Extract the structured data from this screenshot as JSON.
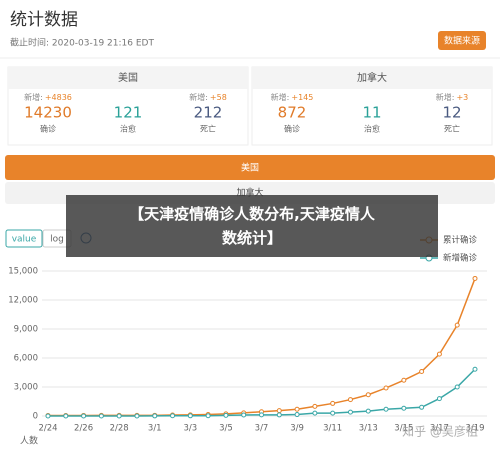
{
  "header": {
    "title": "统计数据",
    "updated": "截止时间: 2020-03-19 21:16 EDT",
    "source_button": "数据来源"
  },
  "regions": [
    {
      "name": "美国",
      "confirmed": {
        "delta_label": "新增:",
        "delta": "+4836",
        "value": 14230,
        "label": "确诊"
      },
      "recovered": {
        "value": 121,
        "label": "治愈"
      },
      "deaths": {
        "delta_label": "新增:",
        "delta": "+58",
        "value": 212,
        "label": "死亡"
      }
    },
    {
      "name": "加拿大",
      "confirmed": {
        "delta_label": "新增:",
        "delta": "+145",
        "value": 872,
        "label": "确诊"
      },
      "recovered": {
        "value": 11,
        "label": "治愈"
      },
      "deaths": {
        "delta_label": "新增:",
        "delta": "+3",
        "value": 12,
        "label": "死亡"
      }
    }
  ],
  "tabs": [
    "美国",
    "加拿大"
  ],
  "scale_toggle": [
    "value",
    "log"
  ],
  "caption": "【天津疫情确诊人数分布,天津疫情人数统计】",
  "watermark": "知乎 @吴彦祖",
  "chart_data": {
    "type": "line",
    "y_label": "人数",
    "legend": "top-right",
    "grid": true,
    "categories": [
      "2/24",
      null,
      "2/26",
      null,
      "2/28",
      null,
      "3/1",
      null,
      "3/3",
      null,
      "3/5",
      null,
      "3/7",
      null,
      "3/9",
      null,
      "3/11",
      null,
      "3/13",
      null,
      "3/15",
      null,
      "3/17",
      null,
      "3/19"
    ],
    "series": [
      {
        "name": "累计确诊",
        "color": "#e8832a",
        "values": [
          53,
          53,
          57,
          60,
          60,
          62,
          70,
          100,
          120,
          150,
          220,
          320,
          440,
          550,
          700,
          1000,
          1300,
          1700,
          2200,
          2900,
          3700,
          4600,
          6400,
          9400,
          14230
        ]
      },
      {
        "name": "新增确诊",
        "color": "#3aa7a7",
        "values": [
          0,
          0,
          4,
          3,
          0,
          2,
          8,
          30,
          20,
          30,
          70,
          100,
          120,
          110,
          150,
          300,
          300,
          400,
          500,
          700,
          800,
          900,
          1800,
          3000,
          4836
        ]
      }
    ],
    "ylim": [
      0,
      15000
    ],
    "yticks": [
      0,
      {
        "value": 3000,
        "label": "3,000"
      },
      {
        "value": 6000,
        "label": "6,000"
      },
      {
        "value": 9000,
        "label": "9,000"
      },
      {
        "value": 12000,
        "label": "12,000"
      },
      {
        "value": 15000,
        "label": "15,000"
      }
    ]
  }
}
